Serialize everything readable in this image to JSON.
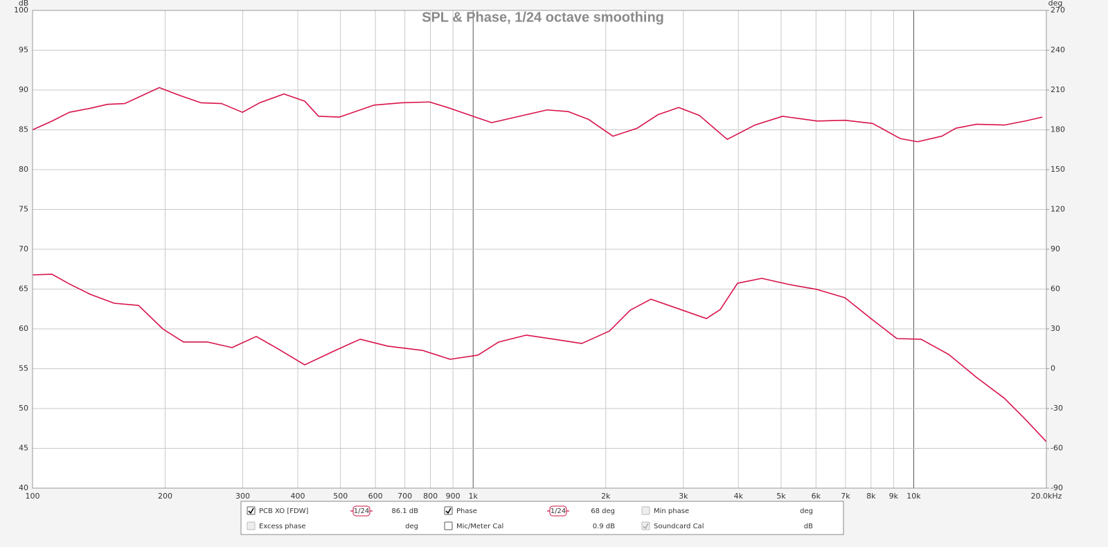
{
  "chart_data": {
    "type": "line",
    "title": "SPL & Phase, 1/24 octave smoothing",
    "xscale": "log",
    "xlim": [
      100,
      20000
    ],
    "xticks": [
      100,
      200,
      300,
      400,
      500,
      600,
      700,
      800,
      900,
      {
        "value": 1000,
        "label": "1k"
      },
      {
        "value": 2000,
        "label": "2k"
      },
      {
        "value": 3000,
        "label": "3k"
      },
      {
        "value": 4000,
        "label": "4k"
      },
      {
        "value": 5000,
        "label": "5k"
      },
      {
        "value": 6000,
        "label": "6k"
      },
      {
        "value": 7000,
        "label": "7k"
      },
      {
        "value": 8000,
        "label": "8k"
      },
      {
        "value": 9000,
        "label": "9k"
      },
      {
        "value": 10000,
        "label": "10k"
      },
      {
        "value": 20000,
        "label": "20.0kHz"
      }
    ],
    "major_xticks": [
      1000,
      10000
    ],
    "ylabel": "dB",
    "ylim": [
      40,
      100
    ],
    "yticks": [
      40,
      45,
      50,
      55,
      60,
      65,
      70,
      75,
      80,
      85,
      90,
      95,
      100
    ],
    "y2label": "deg",
    "y2lim": [
      -90,
      270
    ],
    "y2ticks": [
      -90,
      -60,
      -30,
      0,
      30,
      60,
      90,
      120,
      150,
      180,
      210,
      240,
      270
    ],
    "grid": true,
    "series": [
      {
        "name": "PCB XO [FDW]",
        "color": "#d8124a",
        "axis": "y",
        "x": [
          100,
          110.7,
          121.2,
          135.1,
          147.9,
          161.9,
          174,
          193.9,
          216.2,
          241,
          268.6,
          299.5,
          327.8,
          372,
          414.7,
          445.9,
          497.1,
          595.5,
          688.4,
          795.6,
          886.7,
          1000,
          1102,
          1320,
          1472,
          1641,
          1829,
          2076,
          2356,
          2627,
          2928,
          3264,
          3773,
          4360,
          5039,
          6038,
          6980,
          8066,
          9322,
          10200,
          11580,
          12460,
          13880,
          16050,
          17880,
          19580
        ],
        "values": [
          85.0,
          86.1,
          87.2,
          87.7,
          88.2,
          88.3,
          89.1,
          90.3,
          89.3,
          88.4,
          88.3,
          87.2,
          88.4,
          89.5,
          88.6,
          86.7,
          86.6,
          88.1,
          88.4,
          88.5,
          87.7,
          86.7,
          85.9,
          86.9,
          87.5,
          87.3,
          86.3,
          84.2,
          85.2,
          86.9,
          87.8,
          86.8,
          83.8,
          85.6,
          86.7,
          86.1,
          86.2,
          85.8,
          83.9,
          83.5,
          84.2,
          85.2,
          85.7,
          85.6,
          86.1,
          86.6
        ]
      },
      {
        "name": "Phase",
        "color": "#d8124a",
        "axis": "y2",
        "x": [
          100,
          110.7,
          121.2,
          135.1,
          153.3,
          174,
          197.5,
          220.1,
          249.8,
          283.6,
          321.9,
          358.8,
          414.7,
          479.4,
          554,
          640.3,
          767.4,
          886.7,
          1025,
          1143,
          1320,
          1527,
          1764,
          2039,
          2273,
          2533,
          2928,
          3384,
          3638,
          3982,
          4520,
          5224,
          6038,
          6980,
          8066,
          9155,
          10390,
          12010,
          13880,
          16050,
          17880,
          20000
        ],
        "values": [
          70.7,
          71.2,
          63.9,
          56.1,
          49.3,
          47.7,
          30.0,
          20.1,
          20.1,
          15.9,
          24.3,
          15.4,
          2.9,
          12.8,
          22.2,
          17.0,
          13.8,
          7.1,
          10.2,
          20.1,
          25.3,
          22.2,
          19.0,
          28.4,
          44.1,
          52.4,
          45.1,
          37.8,
          44.6,
          64.4,
          68.1,
          63.4,
          59.7,
          53.5,
          36.8,
          22.7,
          22.2,
          10.7,
          -6.5,
          -22.2,
          -37.8,
          -55.0
        ]
      }
    ]
  },
  "controls": {
    "rows": [
      [
        {
          "label": "PCB XO [FDW]",
          "checked": true,
          "enabled": true,
          "color": "#cc1040",
          "smoothing": "1/24",
          "readout": "86.1 dB"
        },
        {
          "label": "Phase",
          "checked": true,
          "enabled": true,
          "color": "#cc1040",
          "smoothing": "1/24",
          "readout": "68 deg"
        },
        {
          "label": "Min phase",
          "checked": false,
          "enabled": false,
          "color": "#aaaaaa",
          "readout": "deg"
        }
      ],
      [
        {
          "label": "Excess phase",
          "checked": false,
          "enabled": false,
          "color": "#aaaaaa",
          "readout": "deg"
        },
        {
          "label": "Mic/Meter Cal",
          "checked": false,
          "enabled": true,
          "color": "#000000",
          "readout": "0.9 dB"
        },
        {
          "label": "Soundcard Cal",
          "checked": true,
          "enabled": false,
          "color": "#aaaaaa",
          "readout": "dB"
        }
      ]
    ]
  }
}
